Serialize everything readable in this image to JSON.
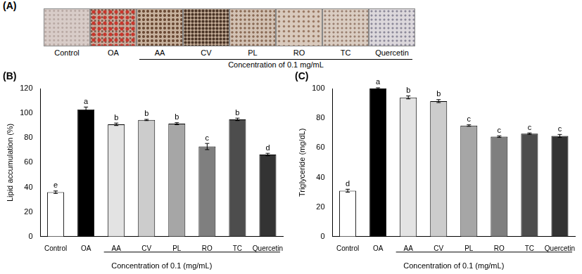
{
  "panel_a": {
    "panel_label": "(A)",
    "labels": [
      "Control",
      "OA",
      "AA",
      "CV",
      "PL",
      "RO",
      "TC",
      "Quercetin"
    ],
    "caption": "Concentration of 0.1 mg/mL"
  },
  "chart_data": [
    {
      "type": "bar",
      "panel_label": "(B)",
      "categories": [
        "Control",
        "OA",
        "AA",
        "CV",
        "PL",
        "RO",
        "TC",
        "Quercetin"
      ],
      "values": [
        36,
        103,
        91,
        94.5,
        91.5,
        73,
        95,
        66.5
      ],
      "errors": [
        1,
        2,
        1,
        0.5,
        0.8,
        2.5,
        1,
        1
      ],
      "letters": [
        "e",
        "a",
        "b",
        "b",
        "b",
        "c",
        "b",
        "d"
      ],
      "colors": [
        "#ffffff",
        "#000000",
        "#e3e3e3",
        "#cccccc",
        "#a6a6a6",
        "#7f7f7f",
        "#4d4d4d",
        "#333333"
      ],
      "x_label": "Concentration of 0.1 (mg/mL)",
      "y_label": "Lipid accumulation (%)",
      "ylim": [
        0,
        120
      ],
      "yticks": [
        0,
        20,
        40,
        60,
        80,
        100,
        120
      ],
      "grid": false
    },
    {
      "type": "bar",
      "panel_label": "(C)",
      "categories": [
        "Control",
        "OA",
        "AA",
        "CV",
        "PL",
        "RO",
        "TC",
        "Quercetin"
      ],
      "values": [
        31,
        100,
        94,
        91.5,
        75,
        67.5,
        69.5,
        68
      ],
      "errors": [
        1,
        0.5,
        1,
        1,
        0.5,
        0.5,
        0.5,
        1
      ],
      "letters": [
        "d",
        "a",
        "b",
        "b",
        "c",
        "c",
        "c",
        "c"
      ],
      "colors": [
        "#ffffff",
        "#000000",
        "#e3e3e3",
        "#cccccc",
        "#a6a6a6",
        "#7f7f7f",
        "#4d4d4d",
        "#333333"
      ],
      "x_label": "Concentration of 0.1 (mg/mL)",
      "y_label": "Triglyceride (mg/dL)",
      "ylim": [
        0,
        100
      ],
      "yticks": [
        0,
        20,
        40,
        60,
        80,
        100
      ],
      "grid": false
    }
  ]
}
